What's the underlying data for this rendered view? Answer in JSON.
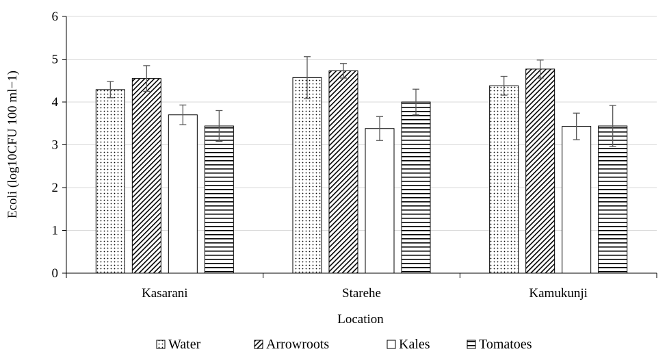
{
  "chart_data": {
    "type": "bar",
    "xlabel": "Location",
    "ylabel": "Ecoli (log10CFU 100 ml−1)",
    "categories": [
      "Kasarani",
      "Starehe",
      "Kamukunji"
    ],
    "series": [
      {
        "name": "Water",
        "pattern": "dots",
        "values": [
          4.29,
          4.57,
          4.38
        ],
        "errors": [
          0.19,
          0.49,
          0.22
        ]
      },
      {
        "name": "Arrowroots",
        "pattern": "diagonal",
        "values": [
          4.55,
          4.73,
          4.77
        ],
        "errors": [
          0.3,
          0.17,
          0.21
        ]
      },
      {
        "name": "Kales",
        "pattern": "none",
        "values": [
          3.7,
          3.38,
          3.43
        ],
        "errors": [
          0.23,
          0.28,
          0.31
        ]
      },
      {
        "name": "Tomatoes",
        "pattern": "horizontal",
        "values": [
          3.44,
          4.0,
          3.44
        ],
        "errors": [
          0.36,
          0.3,
          0.48
        ]
      }
    ],
    "ylim": [
      0,
      6
    ],
    "yticks": [
      "0",
      "1",
      "2",
      "3",
      "4",
      "5",
      "6"
    ],
    "grid": true,
    "legend_position": "bottom",
    "colors": {
      "bar_stroke": "#000000",
      "grid": "#d9d9d9",
      "error_bar": "#595959"
    }
  }
}
